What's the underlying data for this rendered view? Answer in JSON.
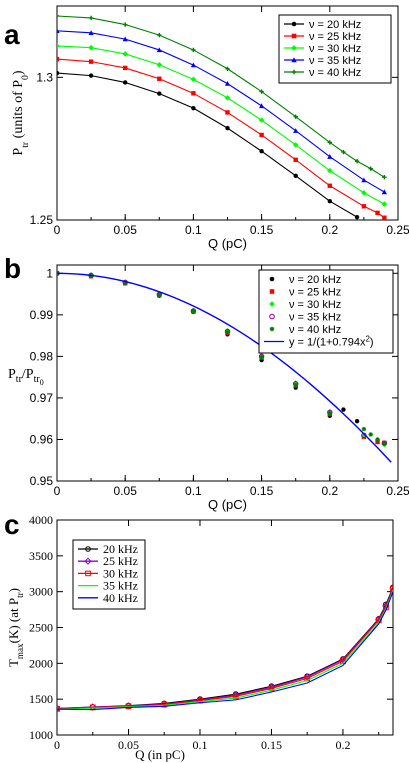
{
  "panels": [
    "a",
    "b",
    "c"
  ],
  "chart_data": [
    {
      "type": "line",
      "panel": "a",
      "xlabel": "Q (pC)",
      "ylabel": "P_tr (units of P_0)",
      "xlim": [
        0,
        0.25
      ],
      "ylim": [
        1.25,
        1.325
      ],
      "xticks": [
        "0",
        "0.05",
        "0.1",
        "0.15",
        "0.2",
        "0.25"
      ],
      "yticks": [
        "1.25",
        "1.3"
      ],
      "legend_position": "top-right",
      "series": [
        {
          "name": "ν = 20 kHz",
          "color": "#000000",
          "marker": "circle",
          "x": [
            0,
            0.025,
            0.05,
            0.075,
            0.1,
            0.125,
            0.15,
            0.175,
            0.2,
            0.22
          ],
          "y": [
            1.3015,
            1.3006,
            1.2982,
            1.2943,
            1.2892,
            1.2822,
            1.2741,
            1.2655,
            1.2566,
            1.251
          ]
        },
        {
          "name": "ν = 25 kHz",
          "color": "#ff0000",
          "marker": "square",
          "x": [
            0,
            0.025,
            0.05,
            0.075,
            0.1,
            0.125,
            0.15,
            0.175,
            0.2,
            0.225,
            0.235,
            0.24
          ],
          "y": [
            1.3064,
            1.3055,
            1.3033,
            1.2995,
            1.2944,
            1.2877,
            1.2798,
            1.2711,
            1.262,
            1.2548,
            1.2525,
            1.2508
          ]
        },
        {
          "name": "ν = 30 kHz",
          "color": "#00ff00",
          "marker": "diamond",
          "x": [
            0,
            0.025,
            0.05,
            0.075,
            0.1,
            0.125,
            0.15,
            0.175,
            0.2,
            0.225,
            0.24
          ],
          "y": [
            1.311,
            1.3104,
            1.3082,
            1.3044,
            1.2993,
            1.2928,
            1.285,
            1.2763,
            1.2673,
            1.2595,
            1.2556
          ]
        },
        {
          "name": "ν = 35 kHz",
          "color": "#0000ff",
          "marker": "triangle",
          "x": [
            0,
            0.025,
            0.05,
            0.075,
            0.1,
            0.125,
            0.15,
            0.175,
            0.2,
            0.225,
            0.24
          ],
          "y": [
            1.3163,
            1.3156,
            1.3134,
            1.3096,
            1.3043,
            1.2978,
            1.29,
            1.2813,
            1.2722,
            1.264,
            1.2598
          ]
        },
        {
          "name": "ν = 40 kHz",
          "color": "#008000",
          "marker": "plus",
          "x": [
            0,
            0.025,
            0.05,
            0.075,
            0.1,
            0.125,
            0.15,
            0.175,
            0.2,
            0.21,
            0.22,
            0.23,
            0.24
          ],
          "y": [
            1.3215,
            1.3208,
            1.3185,
            1.3148,
            1.3096,
            1.303,
            1.295,
            1.2862,
            1.2772,
            1.2738,
            1.2706,
            1.268,
            1.265
          ]
        }
      ]
    },
    {
      "type": "scatter",
      "panel": "b",
      "xlabel": "Q (pC)",
      "ylabel": "P_tr/P_tr0",
      "xlim": [
        0,
        0.25
      ],
      "ylim": [
        0.95,
        1.002
      ],
      "xticks": [
        "0",
        "0.05",
        "0.1",
        "0.15",
        "0.2",
        "0.25"
      ],
      "yticks": [
        "0.95",
        "0.96",
        "0.97",
        "0.98",
        "0.99",
        "1"
      ],
      "legend_position": "top-right",
      "series": [
        {
          "name": "ν = 20 kHz",
          "color": "#000000",
          "marker": "circle",
          "x": [
            0,
            0.025,
            0.05,
            0.075,
            0.1,
            0.125,
            0.15,
            0.175,
            0.2,
            0.21,
            0.22
          ],
          "y": [
            1.0,
            0.9994,
            0.9976,
            0.9946,
            0.9907,
            0.9853,
            0.9791,
            0.9725,
            0.9657,
            0.9672,
            0.9644
          ]
        },
        {
          "name": "ν = 25 kHz",
          "color": "#ff0000",
          "marker": "square",
          "x": [
            0,
            0.025,
            0.05,
            0.075,
            0.1,
            0.125,
            0.15,
            0.175,
            0.2,
            0.225,
            0.235,
            0.24
          ],
          "y": [
            1.0,
            0.9993,
            0.9976,
            0.9947,
            0.9908,
            0.9857,
            0.9797,
            0.973,
            0.9661,
            0.9606,
            0.9594,
            0.9592
          ]
        },
        {
          "name": "ν = 30 kHz",
          "color": "#00ff00",
          "marker": "diamond",
          "x": [
            0,
            0.025,
            0.05,
            0.075,
            0.1,
            0.125,
            0.15,
            0.175,
            0.2,
            0.225,
            0.24
          ],
          "y": [
            1.0,
            0.9996,
            0.9979,
            0.995,
            0.9911,
            0.9862,
            0.9802,
            0.9736,
            0.9667,
            0.9608,
            0.9588
          ]
        },
        {
          "name": "ν = 35 kHz",
          "color": "#8b008b",
          "marker": "open-circle",
          "x": [
            0,
            0.025,
            0.05,
            0.075,
            0.1,
            0.125,
            0.15,
            0.175,
            0.2,
            0.225,
            0.24
          ],
          "y": [
            1.0,
            0.9995,
            0.9978,
            0.9949,
            0.9909,
            0.986,
            0.98,
            0.9734,
            0.9665,
            0.961,
            0.9591
          ]
        },
        {
          "name": "ν = 40 kHz",
          "color": "#008000",
          "marker": "star",
          "x": [
            0,
            0.025,
            0.05,
            0.075,
            0.1,
            0.125,
            0.15,
            0.175,
            0.2,
            0.225,
            0.23,
            0.235,
            0.24
          ],
          "y": [
            1.0,
            0.9994,
            0.9977,
            0.9948,
            0.9908,
            0.9858,
            0.9798,
            0.9731,
            0.9663,
            0.9625,
            0.9612,
            0.96,
            0.959
          ]
        },
        {
          "name": "y = 1/(1+0.794x²)",
          "color": "#0000ff",
          "marker": "none",
          "kind": "line",
          "function": "1/(1+0.794x^2)",
          "x": [
            0,
            0.025,
            0.05,
            0.075,
            0.1,
            0.125,
            0.15,
            0.175,
            0.2,
            0.225,
            0.245
          ],
          "y": [
            1.0,
            0.9995,
            0.998,
            0.9956,
            0.9921,
            0.9878,
            0.9824,
            0.9763,
            0.9693,
            0.9614,
            0.9545
          ]
        }
      ]
    },
    {
      "type": "line",
      "panel": "c",
      "xlabel": "Q   (in pC)",
      "ylabel": "T_max (K)   (at P_tr)",
      "xlim": [
        0,
        0.235
      ],
      "ylim": [
        1000,
        4000
      ],
      "xticks": [
        "0",
        "0.05",
        "0.1",
        "0.15",
        "0.2"
      ],
      "yticks": [
        "1000",
        "1500",
        "2000",
        "2500",
        "3000",
        "3500",
        "4000"
      ],
      "legend_position": "top-left",
      "series": [
        {
          "name": "20 kHz",
          "color": "#000000",
          "marker": "open-circle",
          "x": [
            0,
            0.025,
            0.05,
            0.075,
            0.1,
            0.125,
            0.15,
            0.175,
            0.2,
            0.225,
            0.23,
            0.235
          ],
          "y": [
            1370,
            1390,
            1410,
            1440,
            1500,
            1570,
            1680,
            1820,
            2060,
            2620,
            2820,
            3060
          ]
        },
        {
          "name": "25 kHz",
          "color": "#9400d3",
          "marker": "open-diamond",
          "x": [
            0,
            0.025,
            0.05,
            0.075,
            0.1,
            0.125,
            0.15,
            0.175,
            0.2,
            0.225,
            0.23,
            0.235
          ],
          "y": [
            1370,
            1390,
            1405,
            1430,
            1490,
            1555,
            1665,
            1810,
            2050,
            2610,
            2800,
            3050
          ]
        },
        {
          "name": "30 kHz",
          "color": "#ff0000",
          "marker": "open-square",
          "x": [
            0,
            0.025,
            0.05,
            0.075,
            0.1,
            0.125,
            0.15,
            0.175,
            0.2,
            0.225,
            0.23,
            0.235
          ],
          "y": [
            1365,
            1385,
            1400,
            1425,
            1480,
            1540,
            1650,
            1790,
            2030,
            2600,
            2780,
            3040
          ]
        },
        {
          "name": "35 kHz",
          "color": "#00ff00",
          "marker": "none",
          "x": [
            0,
            0.025,
            0.05,
            0.075,
            0.1,
            0.125,
            0.15,
            0.175,
            0.2,
            0.225,
            0.23,
            0.235
          ],
          "y": [
            1360,
            1375,
            1395,
            1415,
            1465,
            1515,
            1625,
            1760,
            2000,
            2570,
            2760,
            3020
          ]
        },
        {
          "name": "40 kHz",
          "color": "#0000ff",
          "marker": "none",
          "x": [
            0,
            0.025,
            0.05,
            0.075,
            0.1,
            0.125,
            0.15,
            0.175,
            0.2,
            0.225,
            0.23,
            0.235
          ],
          "y": [
            1360,
            1355,
            1385,
            1400,
            1450,
            1490,
            1600,
            1725,
            1970,
            2550,
            2740,
            3000
          ]
        }
      ]
    }
  ]
}
